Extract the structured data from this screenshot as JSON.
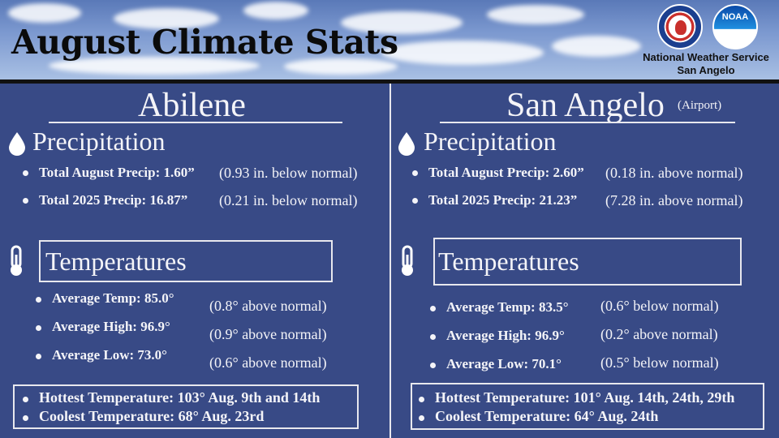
{
  "header": {
    "title": "August Climate Stats",
    "agency_line1": "National Weather Service",
    "agency_line2": "San Angelo",
    "noaa_logo_text": "NOAA"
  },
  "left": {
    "city": "Abilene",
    "precip_heading": "Precipitation",
    "precip": [
      {
        "label": "Total August Precip: 1.60”",
        "note": "(0.93 in. below normal)"
      },
      {
        "label": "Total 2025 Precip: 16.87”",
        "note": "(0.21 in. below normal)"
      }
    ],
    "temp_heading": "Temperatures",
    "temps": [
      {
        "label": "Average Temp: 85.0°",
        "note": "(0.8° above normal)"
      },
      {
        "label": "Average High: 96.9°",
        "note": "(0.9° above normal)"
      },
      {
        "label": "Average Low: 73.0°",
        "note": "(0.6° above normal)"
      }
    ],
    "hottest": "Hottest Temperature: 103° Aug. 9th and 14th",
    "coolest": "Coolest Temperature: 68° Aug. 23rd"
  },
  "right": {
    "city": "San Angelo",
    "city_sub": "(Airport)",
    "precip_heading": "Precipitation",
    "precip": [
      {
        "label": "Total August Precip: 2.60”",
        "note": "(0.18 in. above normal)"
      },
      {
        "label": "Total 2025 Precip: 21.23”",
        "note": "(7.28 in. above normal)"
      }
    ],
    "temp_heading": "Temperatures",
    "temps": [
      {
        "label": "Average Temp: 83.5°",
        "note": "(0.6° below normal)"
      },
      {
        "label": "Average High: 96.9°",
        "note": "(0.2° above normal)"
      },
      {
        "label": "Average Low: 70.1°",
        "note": "(0.5° below normal)"
      }
    ],
    "hottest": "Hottest Temperature: 101° Aug. 14th, 24th, 29th",
    "coolest": "Coolest Temperature: 64° Aug. 24th"
  },
  "colors": {
    "background": "#384a86",
    "text": "#f4f4f8",
    "title": "#0b0b0b"
  }
}
